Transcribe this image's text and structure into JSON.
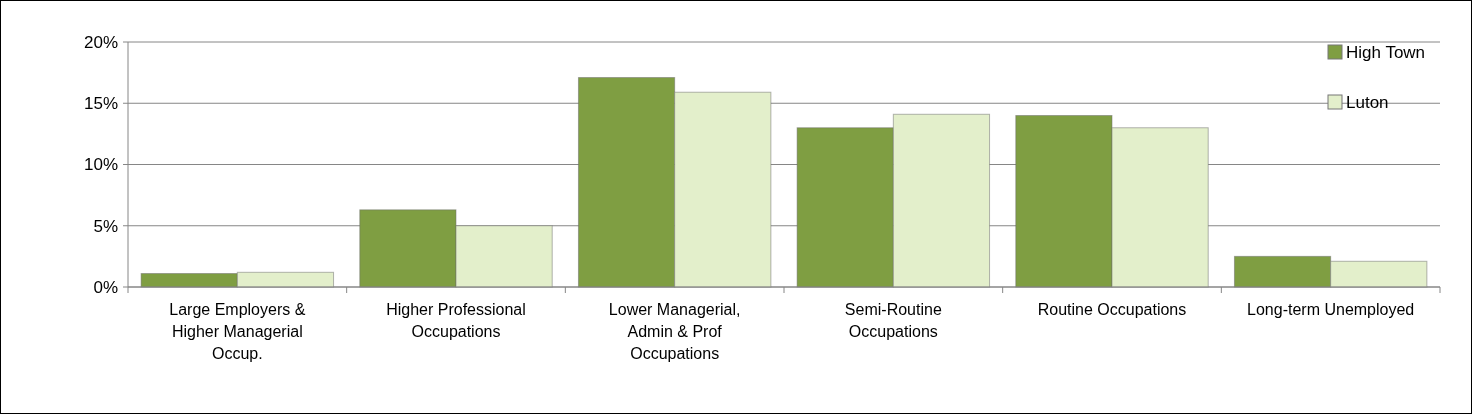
{
  "chart_data": {
    "type": "bar",
    "categories": [
      "Large Employers & Higher Managerial Occup.",
      "Higher Professional Occupations",
      "Lower Managerial, Admin & Prof Occupations",
      "Semi-Routine Occupations",
      "Routine Occupations",
      "Long-term Unemployed"
    ],
    "series": [
      {
        "name": "High Town",
        "color": "#7f9e42",
        "values": [
          1.1,
          6.3,
          17.1,
          13.0,
          14.0,
          2.5
        ]
      },
      {
        "name": "Luton",
        "color": "#e3efcb",
        "values": [
          1.2,
          5.0,
          15.9,
          14.1,
          13.0,
          2.1
        ]
      }
    ],
    "ylim": [
      0,
      20
    ],
    "yticks": [
      {
        "value": 0,
        "label": "0%"
      },
      {
        "value": 5,
        "label": "5%"
      },
      {
        "value": 10,
        "label": "10%"
      },
      {
        "value": 15,
        "label": "15%"
      },
      {
        "value": 20,
        "label": "20%"
      }
    ],
    "grid": "y",
    "legend": "top right"
  }
}
